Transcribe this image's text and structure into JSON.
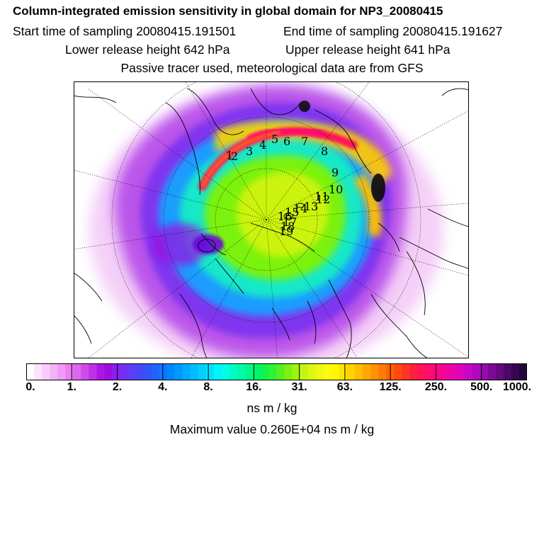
{
  "header": {
    "title": "Column-integrated emission sensitivity in global domain for NP3_20080415",
    "start_time": "Start time of sampling 20080415.191501",
    "end_time": "End time of sampling 20080415.191627",
    "lower_release": "Lower release height  642 hPa",
    "upper_release": "Upper release height  641 hPa",
    "tracer_note": "Passive tracer used, meteorological data are from GFS"
  },
  "map": {
    "trajectory_labels": [
      "1",
      "2",
      "3",
      "4",
      "5",
      "6",
      "7",
      "8",
      "9",
      "10",
      "11",
      "12",
      "13",
      "14",
      "15",
      "16",
      "17",
      "18",
      "19"
    ]
  },
  "colorbar": {
    "tick_labels": [
      "0.",
      "1.",
      "2.",
      "4.",
      "8.",
      "16.",
      "31.",
      "63.",
      "125.",
      "250.",
      "500.",
      "1000."
    ],
    "colors": [
      "#ffffff",
      "#fde4fd",
      "#f9cdf9",
      "#f4b3f6",
      "#ee9cf3",
      "#e880f0",
      "#dd66ee",
      "#d04ce9",
      "#c030e6",
      "#ae16e2",
      "#9a10e2",
      "#8a20ee",
      "#7430f2",
      "#5d3ef6",
      "#4848f8",
      "#3255fa",
      "#2064fc",
      "#1076fd",
      "#0088fe",
      "#009afe",
      "#00acfe",
      "#00befe",
      "#00d0fd",
      "#00e2fc",
      "#00f4fa",
      "#00fee4",
      "#00fcc4",
      "#00faa6",
      "#00f888",
      "#00f66a",
      "#10f44c",
      "#30f234",
      "#56f020",
      "#7af20e",
      "#a0f40c",
      "#c2f60e",
      "#dcf810",
      "#eef812",
      "#fafa14",
      "#fff600",
      "#ffe400",
      "#ffd200",
      "#ffbe00",
      "#ffa800",
      "#ff9200",
      "#ff7a00",
      "#ff6200",
      "#ff4a10",
      "#ff3428",
      "#ff2040",
      "#ff1458",
      "#ff0c6e",
      "#fc0684",
      "#f4049a",
      "#ea04ac",
      "#dc04bc",
      "#c806c4",
      "#b008c0",
      "#960aae",
      "#7c0a98",
      "#640a80",
      "#4c0866",
      "#360650",
      "#22043a"
    ],
    "units": "ns m / kg",
    "max_value": "Maximum value  0.260E+04 ns m / kg"
  }
}
